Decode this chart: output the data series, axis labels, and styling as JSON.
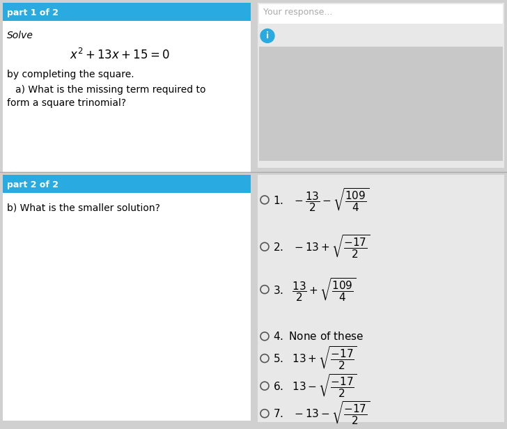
{
  "bg_color": "#d0d0d0",
  "left_panel_bg": "#ffffff",
  "right_panel_bg": "#e8e8e8",
  "header1_bg": "#29abe2",
  "header2_bg": "#29abe2",
  "header1_text": "part 1 of 2",
  "header2_text": "part 2 of 2",
  "header_text_color": "#ffffff",
  "response_box_bg": "#ffffff",
  "response_box_text": "Your response...",
  "response_box_text_color": "#aaaaaa",
  "info_circle_color": "#29abe2",
  "part1_body": "Solve\n$x^2 + 13x + 15 = 0$\nby completing the square.\n   a) What is the missing term required to\nform a square trinomial?",
  "part2_body": "b) What is the smaller solution?",
  "options": [
    "1.  $-\\dfrac{13}{2} - \\sqrt{\\dfrac{109}{4}}$",
    "2.  $-13 + \\sqrt{\\dfrac{-17}{2}}$",
    "3.  $\\dfrac{13}{2} + \\sqrt{\\dfrac{109}{4}}$",
    "4.  None of these",
    "5.  $13 + \\sqrt{\\dfrac{-17}{2}}$",
    "6.  $13 - \\sqrt{\\dfrac{-17}{2}}$",
    "7.  $-13 - \\sqrt{\\dfrac{-17}{2}}$"
  ],
  "figsize": [
    7.28,
    6.16
  ],
  "dpi": 100
}
